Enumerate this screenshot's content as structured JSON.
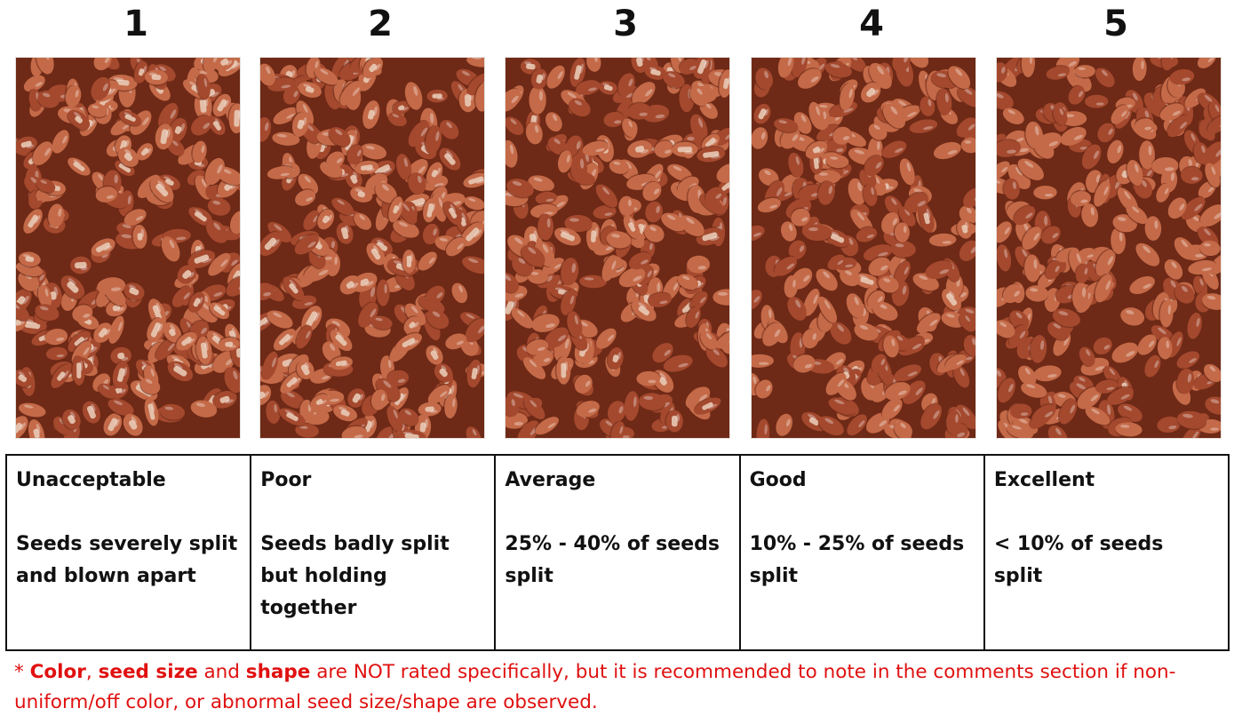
{
  "scores": [
    "1",
    "2",
    "3",
    "4",
    "5"
  ],
  "ratings": [
    {
      "label": "Unacceptable",
      "description": "Seeds severely split and blown apart"
    },
    {
      "label": "Poor",
      "description": "Seeds badly split but holding together"
    },
    {
      "label": "Average",
      "description": "25% - 40% of seeds split"
    },
    {
      "label": "Good",
      "description": "10% - 25% of seeds split"
    },
    {
      "label": "Excellent",
      "description": "< 10% of seeds split"
    }
  ],
  "footnote": {
    "asterisk": "* ",
    "term_color": "Color",
    "sep1": ", ",
    "term_seed_size": "seed size",
    "sep2": " and ",
    "term_shape": "shape",
    "rest": " are NOT rated specifically, but it is recommended to note in the comments section if non-uniform/off color, or abnormal seed size/shape are observed."
  },
  "colors": {
    "footnote": "#e01010",
    "bean_dark": "#6e2a17",
    "bean_base": "#a4492e",
    "bean_light": "#c46a48",
    "split_flesh": "#e8c9b4"
  },
  "photos": [
    {
      "split_level": 0.45
    },
    {
      "split_level": 0.35
    },
    {
      "split_level": 0.18
    },
    {
      "split_level": 0.1
    },
    {
      "split_level": 0.03
    }
  ]
}
